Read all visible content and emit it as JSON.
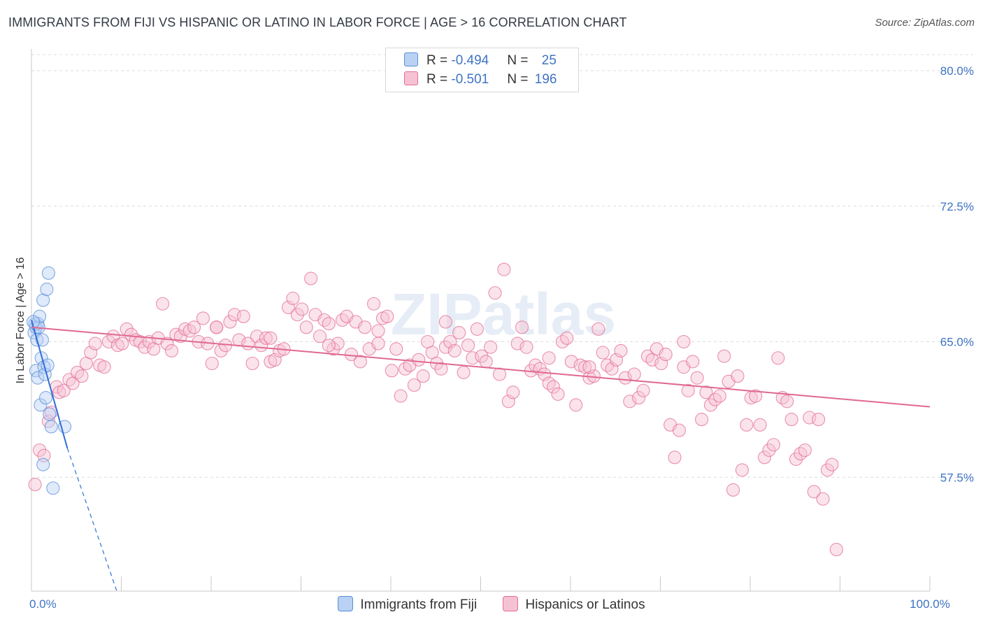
{
  "title": "IMMIGRANTS FROM FIJI VS HISPANIC OR LATINO IN LABOR FORCE | AGE > 16 CORRELATION CHART",
  "source": "Source: ZipAtlas.com",
  "watermark": "ZIPatlas",
  "colors": {
    "fiji": "#5b8ed8",
    "fiji_fill": "#b9d1f3",
    "hispanic": "#e36d96",
    "hispanic_fill": "#f6c2d3",
    "tick": "#3f74c4"
  },
  "legend_top": [
    {
      "r_label": "R = ",
      "r_value": "-0.494",
      "n_label": "N = ",
      "n_value": "25"
    },
    {
      "r_label": "R = ",
      "r_value": "-0.501",
      "n_label": "N = ",
      "n_value": "196"
    }
  ],
  "legend_bottom": [
    "Immigrants from Fiji",
    "Hispanics or Latinos"
  ],
  "chart_data": {
    "type": "scatter",
    "title": "IMMIGRANTS FROM FIJI VS HISPANIC OR LATINO IN LABOR FORCE | AGE > 16 CORRELATION CHART",
    "xlabel": "",
    "ylabel": "In Labor Force | Age > 16",
    "xlim": [
      0,
      100
    ],
    "ylim": [
      51.2,
      81.2
    ],
    "x_tick_labels": [
      {
        "value": 0,
        "label": "0.0%"
      },
      {
        "value": 100,
        "label": "100.0%"
      }
    ],
    "y_tick_labels": [
      {
        "value": 57.5,
        "label": "57.5%"
      },
      {
        "value": 65.0,
        "label": "65.0%"
      },
      {
        "value": 72.5,
        "label": "72.5%"
      },
      {
        "value": 80.0,
        "label": "80.0%"
      }
    ],
    "series": [
      {
        "name": "Immigrants from Fiji",
        "R": -0.494,
        "N": 25,
        "trend": {
          "x0": 0,
          "y0": 66.2,
          "x1": 4.0,
          "y1": 59.1,
          "dash_to_x": 9.5,
          "dash_to_y": 51.2
        },
        "points": [
          [
            0.3,
            65.5
          ],
          [
            0.4,
            66.0
          ],
          [
            0.5,
            65.8
          ],
          [
            0.5,
            63.4
          ],
          [
            0.6,
            65.1
          ],
          [
            0.7,
            66.0
          ],
          [
            0.7,
            63.0
          ],
          [
            0.8,
            65.8
          ],
          [
            0.9,
            66.4
          ],
          [
            1.0,
            61.5
          ],
          [
            1.1,
            64.1
          ],
          [
            1.2,
            65.1
          ],
          [
            1.3,
            67.3
          ],
          [
            1.4,
            63.6
          ],
          [
            1.5,
            63.2
          ],
          [
            1.6,
            61.9
          ],
          [
            1.7,
            67.9
          ],
          [
            1.8,
            63.7
          ],
          [
            1.9,
            68.8
          ],
          [
            2.0,
            61.0
          ],
          [
            2.2,
            60.3
          ],
          [
            1.3,
            58.2
          ],
          [
            2.4,
            56.9
          ],
          [
            3.7,
            60.3
          ],
          [
            0.2,
            66.1
          ]
        ]
      },
      {
        "name": "Hispanics or Latinos",
        "R": -0.501,
        "N": 196,
        "trend": {
          "x0": 0,
          "y0": 65.8,
          "x1": 100,
          "y1": 61.4
        },
        "points": [
          [
            0.4,
            57.1
          ],
          [
            0.9,
            59.0
          ],
          [
            1.4,
            58.7
          ],
          [
            1.9,
            60.6
          ],
          [
            2.2,
            61.1
          ],
          [
            2.8,
            62.5
          ],
          [
            3.1,
            62.2
          ],
          [
            3.6,
            62.3
          ],
          [
            4.2,
            62.9
          ],
          [
            4.6,
            62.7
          ],
          [
            5.1,
            63.3
          ],
          [
            5.6,
            63.1
          ],
          [
            6.1,
            63.8
          ],
          [
            6.6,
            64.4
          ],
          [
            7.1,
            64.9
          ],
          [
            7.6,
            63.7
          ],
          [
            8.1,
            63.6
          ],
          [
            8.6,
            65.0
          ],
          [
            9.1,
            65.3
          ],
          [
            9.6,
            64.8
          ],
          [
            10.1,
            64.9
          ],
          [
            10.6,
            65.7
          ],
          [
            11.1,
            65.4
          ],
          [
            11.6,
            65.1
          ],
          [
            12.1,
            65.0
          ],
          [
            12.6,
            64.7
          ],
          [
            13.1,
            65.0
          ],
          [
            13.6,
            64.6
          ],
          [
            14.1,
            65.2
          ],
          [
            14.6,
            67.1
          ],
          [
            15.1,
            64.9
          ],
          [
            15.6,
            64.5
          ],
          [
            16.1,
            65.4
          ],
          [
            16.6,
            65.3
          ],
          [
            17.1,
            65.7
          ],
          [
            17.6,
            65.6
          ],
          [
            18.1,
            65.8
          ],
          [
            18.6,
            65.0
          ],
          [
            19.1,
            66.3
          ],
          [
            19.6,
            64.9
          ],
          [
            20.1,
            63.8
          ],
          [
            20.6,
            65.8
          ],
          [
            21.1,
            64.5
          ],
          [
            21.6,
            64.8
          ],
          [
            22.1,
            66.1
          ],
          [
            22.6,
            66.5
          ],
          [
            23.1,
            65.1
          ],
          [
            23.6,
            66.4
          ],
          [
            24.1,
            64.9
          ],
          [
            24.6,
            63.8
          ],
          [
            25.1,
            65.3
          ],
          [
            25.6,
            64.8
          ],
          [
            26.1,
            65.2
          ],
          [
            26.6,
            63.9
          ],
          [
            27.1,
            64.0
          ],
          [
            27.6,
            64.5
          ],
          [
            28.1,
            64.6
          ],
          [
            28.6,
            66.9
          ],
          [
            29.1,
            67.4
          ],
          [
            29.6,
            66.5
          ],
          [
            30.1,
            66.8
          ],
          [
            30.6,
            65.8
          ],
          [
            31.1,
            68.5
          ],
          [
            31.6,
            66.5
          ],
          [
            32.1,
            65.3
          ],
          [
            32.6,
            66.2
          ],
          [
            33.1,
            66.0
          ],
          [
            33.6,
            64.6
          ],
          [
            34.1,
            64.9
          ],
          [
            34.6,
            66.2
          ],
          [
            35.1,
            66.4
          ],
          [
            35.6,
            64.3
          ],
          [
            36.1,
            66.1
          ],
          [
            36.6,
            63.9
          ],
          [
            37.1,
            65.8
          ],
          [
            37.6,
            64.6
          ],
          [
            38.1,
            67.1
          ],
          [
            38.6,
            65.6
          ],
          [
            39.1,
            66.3
          ],
          [
            39.6,
            66.4
          ],
          [
            40.1,
            63.4
          ],
          [
            40.6,
            64.6
          ],
          [
            41.1,
            62.0
          ],
          [
            41.6,
            63.5
          ],
          [
            42.1,
            63.7
          ],
          [
            42.6,
            62.6
          ],
          [
            43.1,
            64.0
          ],
          [
            43.6,
            63.1
          ],
          [
            44.1,
            65.0
          ],
          [
            44.6,
            64.4
          ],
          [
            45.1,
            63.8
          ],
          [
            45.6,
            63.5
          ],
          [
            46.1,
            64.7
          ],
          [
            46.6,
            65.0
          ],
          [
            47.1,
            64.5
          ],
          [
            47.6,
            65.5
          ],
          [
            48.1,
            63.3
          ],
          [
            48.6,
            64.8
          ],
          [
            49.1,
            64.1
          ],
          [
            49.6,
            65.7
          ],
          [
            50.1,
            64.2
          ],
          [
            50.6,
            63.9
          ],
          [
            51.1,
            64.7
          ],
          [
            51.6,
            67.7
          ],
          [
            52.1,
            63.2
          ],
          [
            52.6,
            69.0
          ],
          [
            53.1,
            61.7
          ],
          [
            53.6,
            62.2
          ],
          [
            54.1,
            64.9
          ],
          [
            54.6,
            65.8
          ],
          [
            55.1,
            64.7
          ],
          [
            55.6,
            63.4
          ],
          [
            56.1,
            63.7
          ],
          [
            56.6,
            63.5
          ],
          [
            57.1,
            63.2
          ],
          [
            57.6,
            62.7
          ],
          [
            58.1,
            62.5
          ],
          [
            58.6,
            62.1
          ],
          [
            59.1,
            65.0
          ],
          [
            59.6,
            65.2
          ],
          [
            60.1,
            63.9
          ],
          [
            60.6,
            61.5
          ],
          [
            61.1,
            63.7
          ],
          [
            61.6,
            63.6
          ],
          [
            62.1,
            63.0
          ],
          [
            62.6,
            63.1
          ],
          [
            63.1,
            65.7
          ],
          [
            63.6,
            64.4
          ],
          [
            64.1,
            63.7
          ],
          [
            64.6,
            63.5
          ],
          [
            65.1,
            64.0
          ],
          [
            65.6,
            64.5
          ],
          [
            66.1,
            63.0
          ],
          [
            66.6,
            61.7
          ],
          [
            67.1,
            63.2
          ],
          [
            67.6,
            61.9
          ],
          [
            68.1,
            62.3
          ],
          [
            68.6,
            64.2
          ],
          [
            69.1,
            64.0
          ],
          [
            69.6,
            64.6
          ],
          [
            70.1,
            63.8
          ],
          [
            70.6,
            64.3
          ],
          [
            71.1,
            60.4
          ],
          [
            71.6,
            58.6
          ],
          [
            72.1,
            60.1
          ],
          [
            72.6,
            63.6
          ],
          [
            73.1,
            62.3
          ],
          [
            73.6,
            63.9
          ],
          [
            74.1,
            63.0
          ],
          [
            74.6,
            60.7
          ],
          [
            75.1,
            62.2
          ],
          [
            75.6,
            61.5
          ],
          [
            76.1,
            61.8
          ],
          [
            76.6,
            62.0
          ],
          [
            77.1,
            64.2
          ],
          [
            77.6,
            62.8
          ],
          [
            78.1,
            56.8
          ],
          [
            78.6,
            63.1
          ],
          [
            79.1,
            57.9
          ],
          [
            79.6,
            60.4
          ],
          [
            80.1,
            61.9
          ],
          [
            80.6,
            62.0
          ],
          [
            81.1,
            60.4
          ],
          [
            81.6,
            58.6
          ],
          [
            82.1,
            59.0
          ],
          [
            82.6,
            59.3
          ],
          [
            83.1,
            64.1
          ],
          [
            83.6,
            61.9
          ],
          [
            84.1,
            61.7
          ],
          [
            84.6,
            60.7
          ],
          [
            85.1,
            58.5
          ],
          [
            85.6,
            58.8
          ],
          [
            86.1,
            59.0
          ],
          [
            86.6,
            60.8
          ],
          [
            87.1,
            56.7
          ],
          [
            87.6,
            60.7
          ],
          [
            88.1,
            56.3
          ],
          [
            88.6,
            57.9
          ],
          [
            89.1,
            58.2
          ],
          [
            89.6,
            53.5
          ],
          [
            26.6,
            65.2
          ],
          [
            46.1,
            66.1
          ],
          [
            62.1,
            63.6
          ],
          [
            72.6,
            65.0
          ],
          [
            33.1,
            64.8
          ],
          [
            57.6,
            64.1
          ],
          [
            20.6,
            65.8
          ],
          [
            38.6,
            64.9
          ]
        ]
      }
    ]
  }
}
